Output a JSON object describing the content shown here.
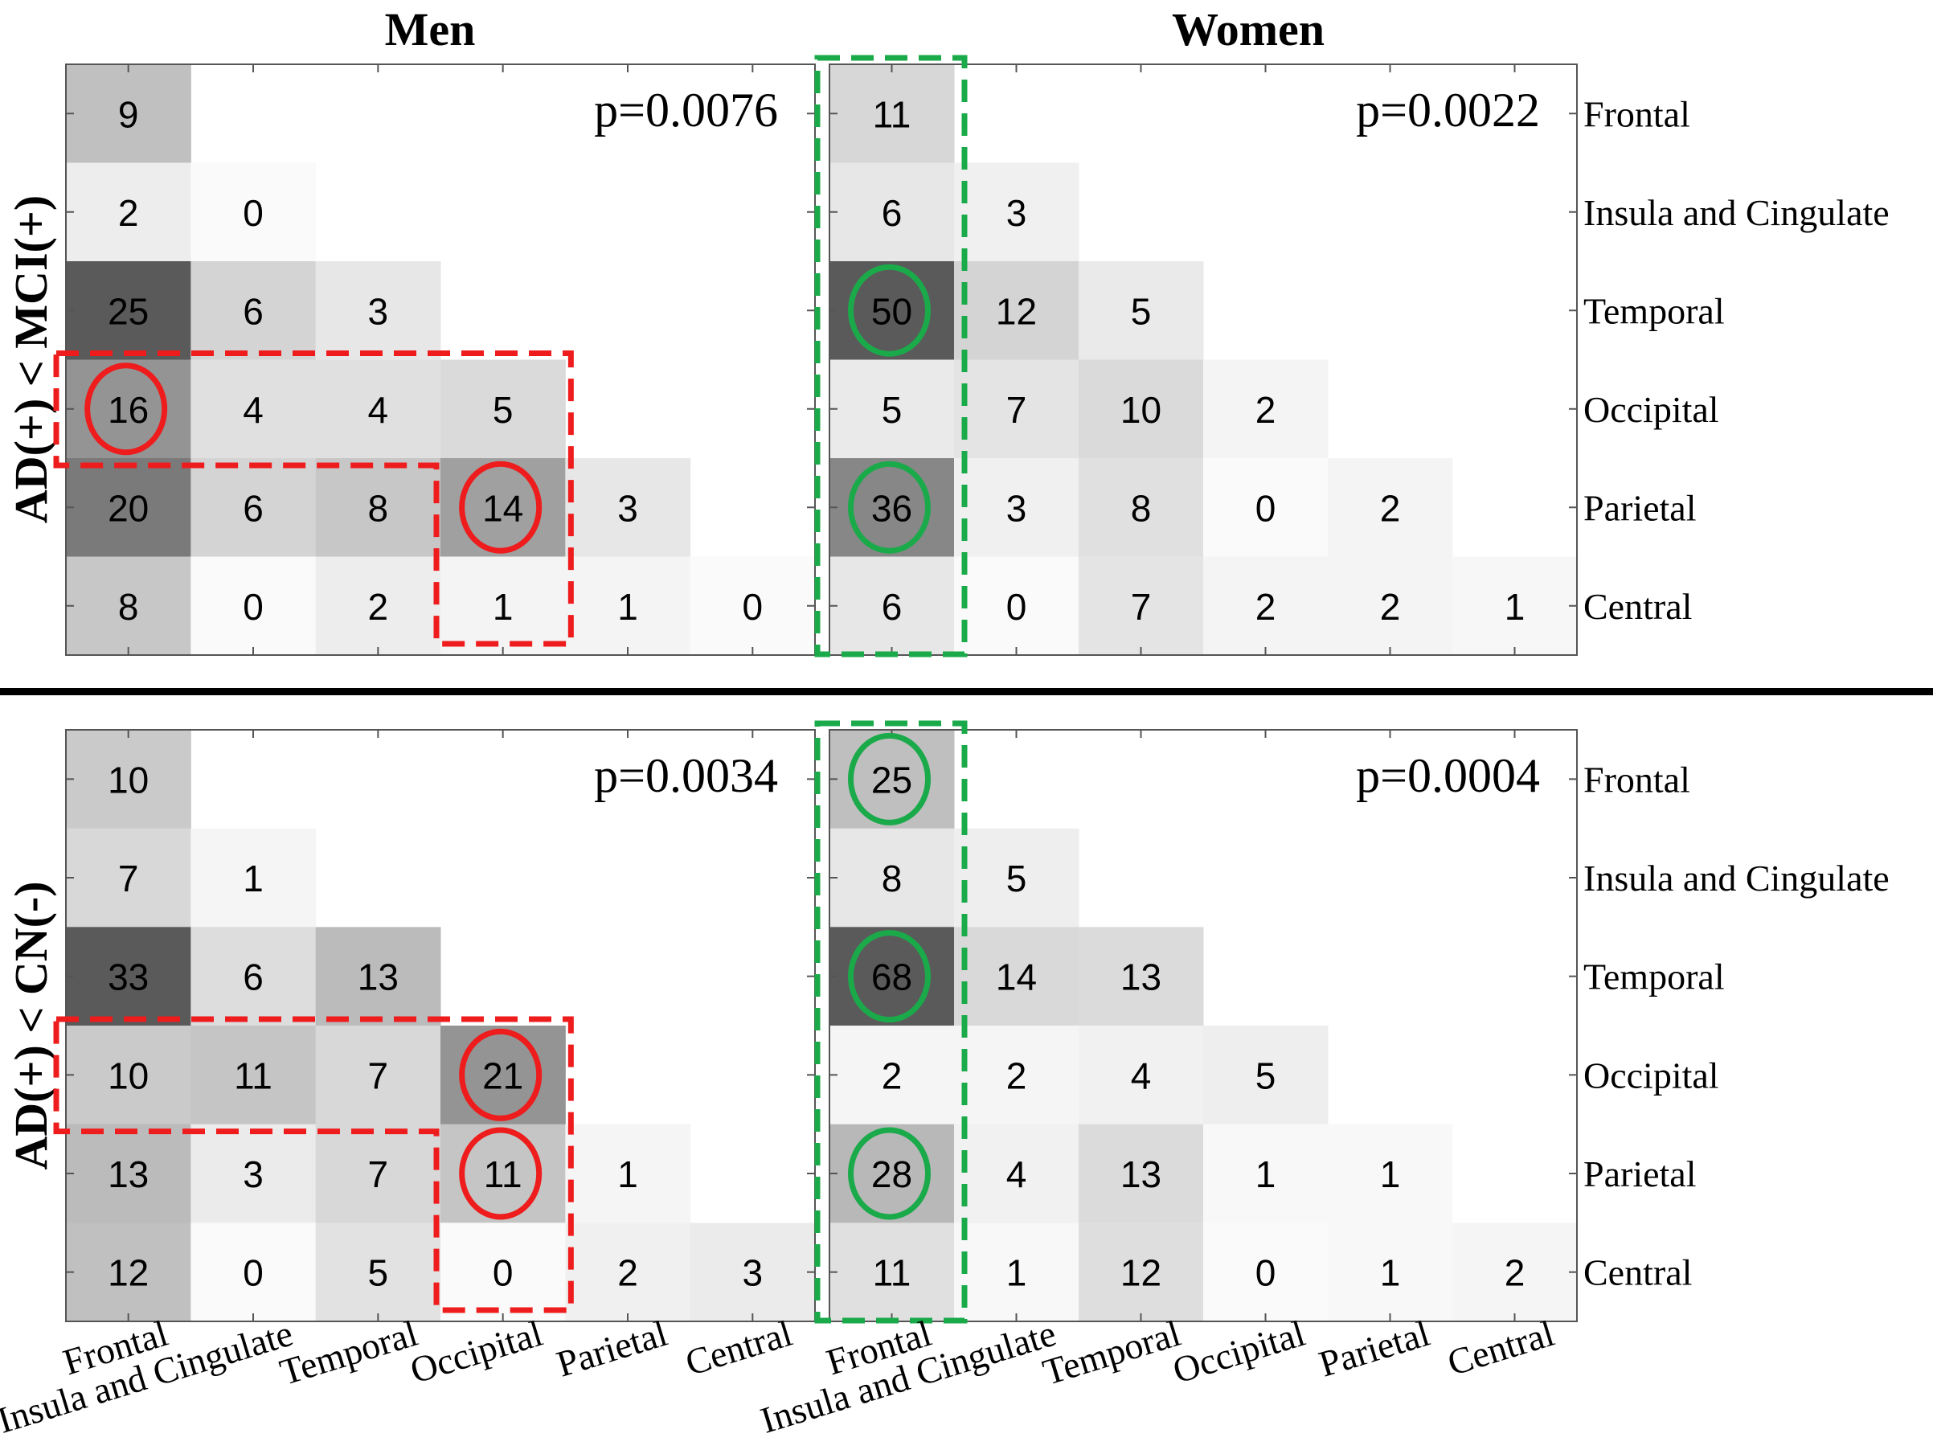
{
  "chart_data": {
    "type": "heatmap",
    "column_titles": [
      "Men",
      "Women"
    ],
    "row_titles": [
      "AD(+) < MCI(+)",
      "AD(+) < CN(-)"
    ],
    "regions": [
      "Frontal",
      "Insula and Cingulate",
      "Temporal",
      "Occipital",
      "Parietal",
      "Central"
    ],
    "colors": {
      "red_highlight": "#ee1c1c",
      "green_highlight": "#1aaa4a",
      "divider": "#000000",
      "axis": "#555555"
    },
    "panels": [
      {
        "id": "men-mci",
        "column": "Men",
        "row": "AD(+) < MCI(+)",
        "p_value": "p=0.0076",
        "highlight": "red",
        "matrix": [
          [
            9
          ],
          [
            2,
            0
          ],
          [
            25,
            6,
            3
          ],
          [
            16,
            4,
            4,
            5
          ],
          [
            20,
            6,
            8,
            14,
            3
          ],
          [
            8,
            0,
            2,
            1,
            1,
            0
          ]
        ],
        "circled": [
          [
            3,
            0
          ],
          [
            4,
            3
          ]
        ],
        "outlined_region": "Occipital"
      },
      {
        "id": "women-mci",
        "column": "Women",
        "row": "AD(+) < MCI(+)",
        "p_value": "p=0.0022",
        "highlight": "green",
        "matrix": [
          [
            11
          ],
          [
            6,
            3
          ],
          [
            50,
            12,
            5
          ],
          [
            5,
            7,
            10,
            2
          ],
          [
            36,
            3,
            8,
            0,
            2
          ],
          [
            6,
            0,
            7,
            2,
            2,
            1
          ]
        ],
        "circled": [
          [
            2,
            0
          ],
          [
            4,
            0
          ]
        ],
        "outlined_region": "Frontal"
      },
      {
        "id": "men-cn",
        "column": "Men",
        "row": "AD(+) < CN(-)",
        "p_value": "p=0.0034",
        "highlight": "red",
        "matrix": [
          [
            10
          ],
          [
            7,
            1
          ],
          [
            33,
            6,
            13
          ],
          [
            10,
            11,
            7,
            21
          ],
          [
            13,
            3,
            7,
            11,
            1
          ],
          [
            12,
            0,
            5,
            0,
            2,
            3
          ]
        ],
        "circled": [
          [
            3,
            3
          ],
          [
            4,
            3
          ]
        ],
        "outlined_region": "Occipital"
      },
      {
        "id": "women-cn",
        "column": "Women",
        "row": "AD(+) < CN(-)",
        "p_value": "p=0.0004",
        "highlight": "green",
        "matrix": [
          [
            25
          ],
          [
            8,
            5
          ],
          [
            68,
            14,
            13
          ],
          [
            2,
            2,
            4,
            5
          ],
          [
            28,
            4,
            13,
            1,
            1
          ],
          [
            11,
            1,
            12,
            0,
            1,
            2
          ]
        ],
        "circled": [
          [
            0,
            0
          ],
          [
            2,
            0
          ],
          [
            4,
            0
          ]
        ],
        "outlined_region": "Frontal"
      }
    ]
  }
}
